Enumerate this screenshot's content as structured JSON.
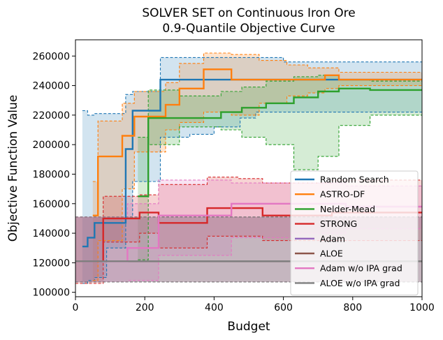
{
  "chart_data": {
    "type": "line",
    "title_line1": "SOLVER SET on Continuous Iron Ore",
    "title_line2": "0.9-Quantile Objective Curve",
    "xlabel": "Budget",
    "ylabel": "Objective Function Value",
    "xlim": [
      0,
      1000
    ],
    "ylim": [
      97000,
      271000
    ],
    "xticks": [
      0,
      200,
      400,
      600,
      800,
      1000
    ],
    "xtick_labels": [
      "0",
      "200",
      "400",
      "600",
      "800",
      "1000"
    ],
    "yticks": [
      100000,
      120000,
      140000,
      160000,
      180000,
      200000,
      220000,
      240000,
      260000
    ],
    "ytick_labels": [
      "100000",
      "120000",
      "140000",
      "160000",
      "180000",
      "200000",
      "220000",
      "240000",
      "260000"
    ],
    "legend_position": "lower-right",
    "series": [
      {
        "name": "Random Search",
        "color": "#1f77b4",
        "x": [
          20,
          35,
          55,
          90,
          145,
          165,
          245,
          330,
          400,
          475,
          520,
          600,
          650,
          700,
          760,
          1000
        ],
        "y": [
          131000,
          137000,
          147000,
          147000,
          197000,
          223000,
          244000,
          244000,
          244000,
          244000,
          244000,
          244000,
          244000,
          244000,
          244000,
          244000
        ],
        "upper": [
          223000,
          220000,
          221000,
          221000,
          234000,
          236000,
          259000,
          259000,
          259000,
          259000,
          259000,
          256000,
          256000,
          256000,
          256000,
          256000
        ],
        "lower": [
          106000,
          108000,
          110000,
          130000,
          150000,
          175000,
          205000,
          207000,
          212000,
          218000,
          222000,
          222000,
          222000,
          222000,
          222000,
          222000
        ]
      },
      {
        "name": "ASTRO-DF",
        "color": "#ff7f0e",
        "x": [
          50,
          65,
          135,
          170,
          260,
          300,
          370,
          450,
          530,
          610,
          670,
          720,
          760,
          1000
        ],
        "y": [
          152000,
          192000,
          206000,
          219000,
          227000,
          238000,
          251000,
          244000,
          244000,
          244000,
          244000,
          247000,
          244000,
          244000
        ],
        "upper": [
          175000,
          216000,
          228000,
          236000,
          242000,
          255000,
          262000,
          261000,
          257000,
          254000,
          252000,
          252000,
          249000,
          249000
        ],
        "lower": [
          108000,
          135000,
          170000,
          195000,
          210000,
          215000,
          222000,
          220000,
          228000,
          233000,
          235000,
          238000,
          240000,
          240000
        ]
      },
      {
        "name": "Nelder-Mead",
        "color": "#2ca02c",
        "x": [
          180,
          210,
          300,
          420,
          480,
          550,
          630,
          700,
          760,
          850,
          1000
        ],
        "y": [
          165000,
          218000,
          218000,
          222000,
          225000,
          228000,
          232000,
          236000,
          238000,
          237000,
          237000
        ],
        "upper": [
          205000,
          237000,
          233000,
          236000,
          239000,
          243000,
          246000,
          247000,
          244000,
          243000,
          243000
        ],
        "lower": [
          122000,
          200000,
          212000,
          210000,
          205000,
          200000,
          183000,
          192000,
          213000,
          220000,
          220000
        ]
      },
      {
        "name": "STRONG",
        "color": "#d62728",
        "x": [
          0,
          80,
          185,
          240,
          380,
          470,
          540,
          640,
          740,
          900,
          1000
        ],
        "y": [
          121000,
          150000,
          154000,
          147000,
          157000,
          157000,
          152000,
          152000,
          154000,
          154000,
          154000
        ],
        "upper": [
          151000,
          165000,
          166000,
          173000,
          178000,
          177000,
          174000,
          174000,
          176000,
          176000,
          176000
        ],
        "lower": [
          106000,
          134000,
          140000,
          130000,
          138000,
          138000,
          135000,
          135000,
          135000,
          135000,
          135000
        ]
      },
      {
        "name": "Adam",
        "color": "#9467bd",
        "x": [
          0,
          1000
        ],
        "y": [
          121000,
          121000
        ],
        "upper": [
          151000,
          151000
        ],
        "lower": [
          107000,
          107000
        ]
      },
      {
        "name": "ALOE",
        "color": "#8c564b",
        "x": [
          0,
          1000
        ],
        "y": [
          121000,
          121000
        ],
        "upper": [
          151000,
          151000
        ],
        "lower": [
          107000,
          107000
        ]
      },
      {
        "name": "Adam w/o IPA grad",
        "color": "#e377c2",
        "x": [
          0,
          150,
          240,
          450,
          620,
          780,
          900,
          1000
        ],
        "y": [
          121000,
          130000,
          152000,
          160000,
          160000,
          158000,
          158000,
          158000
        ],
        "upper": [
          151000,
          160000,
          176000,
          174000,
          174000,
          172000,
          172000,
          172000
        ],
        "lower": [
          107000,
          108000,
          125000,
          137000,
          140000,
          143000,
          143000,
          143000
        ]
      },
      {
        "name": "ALOE w/o IPA grad",
        "color": "#7f7f7f",
        "x": [
          0,
          1000
        ],
        "y": [
          121000,
          121000
        ],
        "upper": [
          151000,
          151000
        ],
        "lower": [
          107000,
          107000
        ]
      }
    ]
  }
}
